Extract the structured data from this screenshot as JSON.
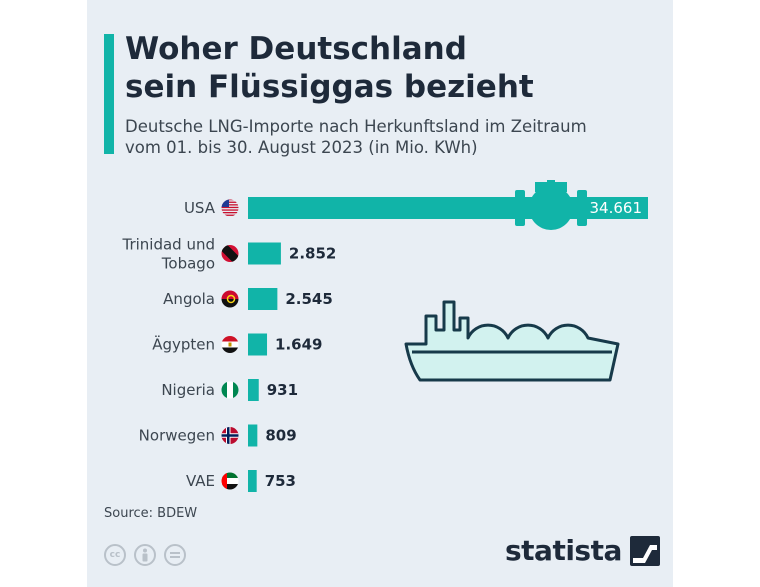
{
  "header": {
    "title_line1": "Woher Deutschland",
    "title_line2": "sein Flüssiggas bezieht",
    "subtitle_line1": "Deutsche LNG-Importe nach Herkunftsland im Zeitraum",
    "subtitle_line2": "vom 01. bis 30. August 2023 (in Mio. KWh)"
  },
  "colors": {
    "accent": "#11b4a8",
    "background": "#e8eef4",
    "text": "#1e2a3a",
    "ship_fill": "#d2f2ef"
  },
  "chart_data": {
    "type": "bar",
    "orientation": "horizontal",
    "categories": [
      "USA",
      "Trinidad und Tobago",
      "Angola",
      "Ägypten",
      "Nigeria",
      "Norwegen",
      "VAE"
    ],
    "category_lines": [
      [
        "USA"
      ],
      [
        "Trinidad und",
        "Tobago"
      ],
      [
        "Angola"
      ],
      [
        "Ägypten"
      ],
      [
        "Nigeria"
      ],
      [
        "Norwegen"
      ],
      [
        "VAE"
      ]
    ],
    "values": [
      34661,
      2852,
      2545,
      1649,
      931,
      809,
      753
    ],
    "value_labels": [
      "34.661",
      "2.852",
      "2.545",
      "1.649",
      "931",
      "809",
      "753"
    ],
    "flags": [
      "usa-flag",
      "trinidad-and-tobago-flag",
      "angola-flag",
      "egypt-flag",
      "nigeria-flag",
      "norway-flag",
      "uae-flag"
    ],
    "xlim": [
      0,
      34661
    ],
    "grid": false,
    "legend": "none"
  },
  "footer": {
    "source": "Source: BDEW",
    "brand": "statista",
    "license_icons": [
      "cc-icon",
      "by-icon",
      "nd-icon"
    ]
  }
}
